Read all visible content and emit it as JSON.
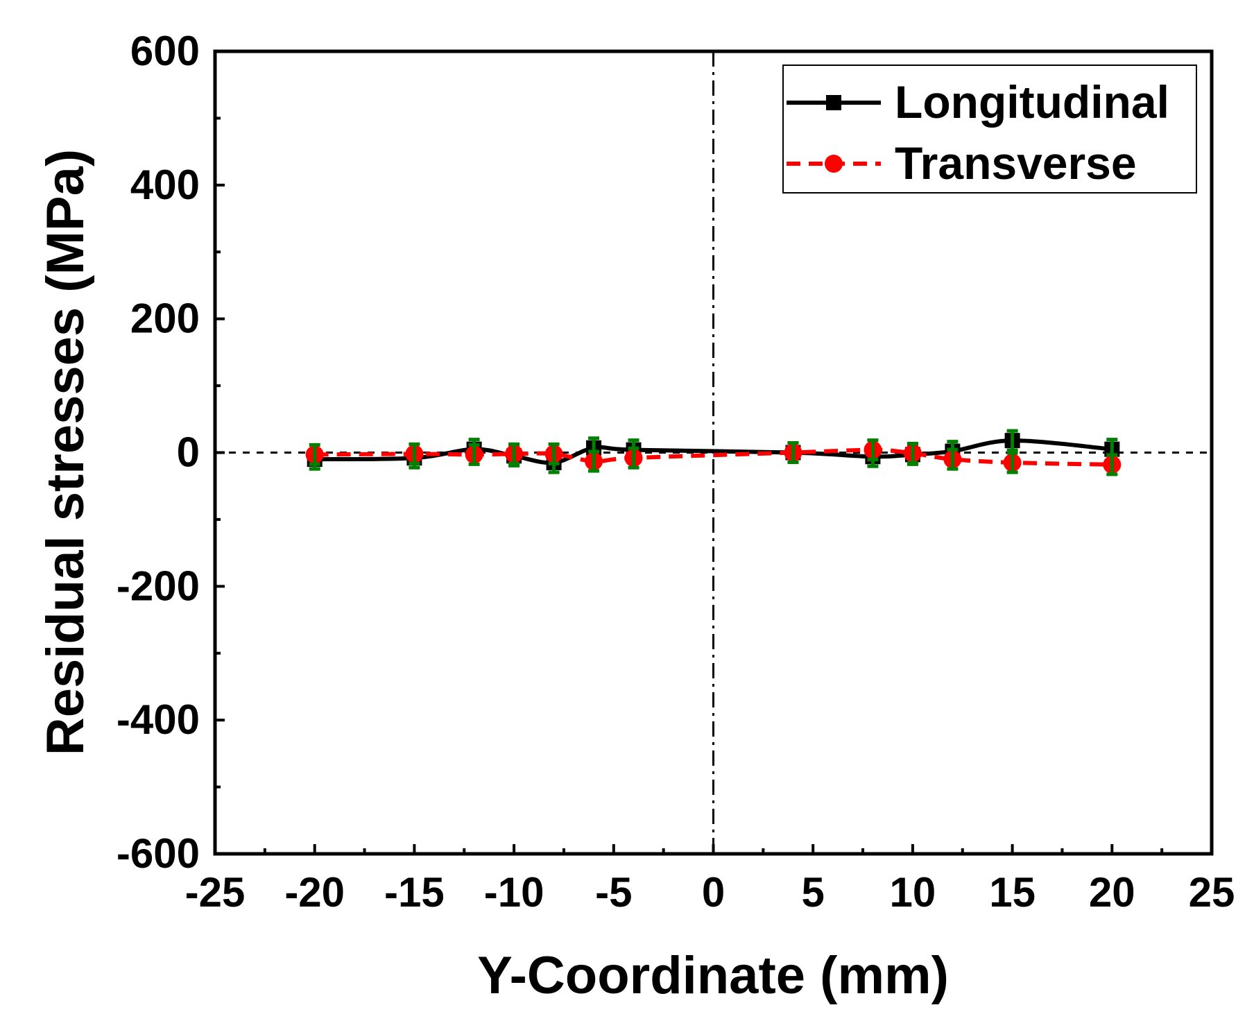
{
  "chart_data": {
    "type": "line",
    "title": "",
    "xlabel": "Y-Coordinate (mm)",
    "ylabel": "Residual stresses (MPa)",
    "xlim": [
      -25,
      25
    ],
    "ylim": [
      -600,
      600
    ],
    "xticks": [
      -25,
      -20,
      -15,
      -10,
      -5,
      0,
      5,
      10,
      15,
      20,
      25
    ],
    "yticks": [
      -600,
      -400,
      -200,
      0,
      200,
      400,
      600
    ],
    "x": [
      -20,
      -15,
      -12,
      -10,
      -8,
      -6,
      -4,
      4,
      8,
      10,
      12,
      15,
      20
    ],
    "series": [
      {
        "name": "Longitudinal",
        "color": "#000000",
        "marker": "square",
        "line_style": "solid",
        "values": [
          -10,
          -8,
          5,
          -5,
          -15,
          7,
          4,
          0,
          -6,
          -3,
          2,
          18,
          5
        ]
      },
      {
        "name": "Transverse",
        "color": "#ff0000",
        "marker": "circle",
        "line_style": "dashed",
        "values": [
          -3,
          -2,
          -3,
          -2,
          -2,
          -13,
          -8,
          0,
          4,
          -1,
          -10,
          -15,
          -18
        ]
      }
    ],
    "error_bar_color": "#008000",
    "reference_lines": [
      {
        "axis": "y",
        "value": 0,
        "style": "dashed"
      },
      {
        "axis": "x",
        "value": 0,
        "style": "dash-dot"
      }
    ],
    "legend_position": "top-right",
    "grid": false
  }
}
